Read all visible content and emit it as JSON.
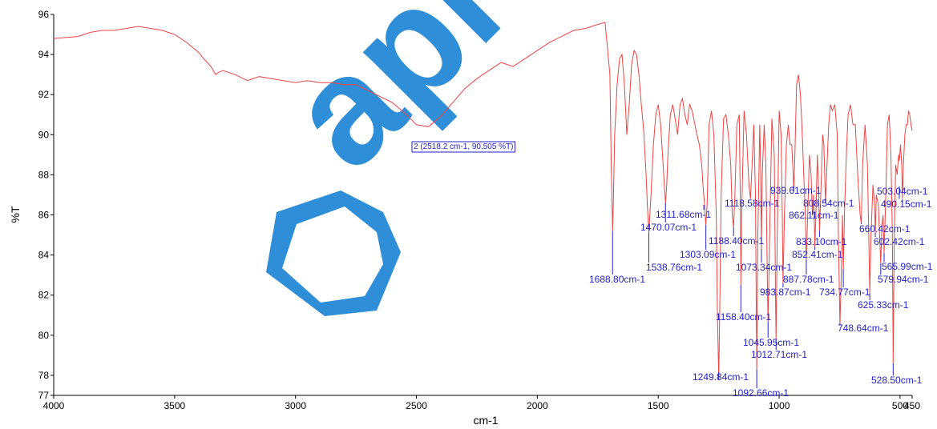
{
  "chart_data": {
    "type": "line",
    "xlabel": "cm-1",
    "ylabel": "%T",
    "xlim": [
      4000,
      450
    ],
    "ylim": [
      77,
      96
    ],
    "x_ticks": [
      4000,
      3500,
      3000,
      2500,
      2000,
      1500,
      1000,
      500,
      450
    ],
    "x_tick_labels": [
      "4000",
      "3500",
      "3000",
      "2500",
      "2000",
      "1500",
      "1000",
      "500",
      "450"
    ],
    "y_ticks": [
      77,
      78,
      80,
      82,
      84,
      86,
      88,
      90,
      92,
      94,
      96
    ],
    "y_tick_labels": [
      "77",
      "78",
      "80",
      "82",
      "84",
      "86",
      "88",
      "90",
      "92",
      "94",
      "96"
    ],
    "line_color": "#ee4444",
    "marker_color": "#2222cc",
    "series": [
      {
        "x": [
          4000,
          3900,
          3850,
          3800,
          3750,
          3700,
          3650,
          3600,
          3550,
          3500,
          3450,
          3400,
          3380,
          3350,
          3330,
          3320,
          3300,
          3250,
          3200,
          3150,
          3100,
          3050,
          3000,
          2950,
          2900,
          2850,
          2800,
          2750,
          2700,
          2650,
          2600,
          2550,
          2500,
          2450,
          2400,
          2350,
          2300,
          2250,
          2200,
          2150,
          2100,
          2050,
          2000,
          1950,
          1900,
          1850,
          1800,
          1750,
          1720,
          1700,
          1695,
          1690,
          1688.8,
          1685,
          1680,
          1670,
          1660,
          1650,
          1640,
          1630,
          1620,
          1610,
          1600,
          1590,
          1580,
          1570,
          1560,
          1550,
          1545,
          1538.76,
          1530,
          1520,
          1510,
          1500,
          1490,
          1480,
          1475,
          1470.07,
          1465,
          1460,
          1450,
          1440,
          1430,
          1420,
          1410,
          1400,
          1390,
          1380,
          1370,
          1360,
          1350,
          1340,
          1330,
          1320,
          1315,
          1311.68,
          1308,
          1303.09,
          1298,
          1290,
          1280,
          1270,
          1260,
          1255,
          1249.84,
          1245,
          1240,
          1230,
          1220,
          1210,
          1200,
          1194,
          1188.4,
          1183,
          1175,
          1165,
          1160,
          1158.4,
          1155,
          1145,
          1135,
          1125,
          1118.58,
          1112,
          1105,
          1098,
          1092.66,
          1088,
          1080,
          1076,
          1073.34,
          1070,
          1062,
          1055,
          1048,
          1045.95,
          1040,
          1030,
          1020,
          1015,
          1012.71,
          1008,
          1000,
          992,
          987,
          983.87,
          978,
          970,
          962,
          955,
          948,
          942,
          939.61,
          935,
          928,
          920,
          912,
          905,
          898,
          892,
          887.78,
          882,
          875,
          868,
          864,
          862.11,
          858,
          854,
          852.41,
          848,
          842,
          836,
          833.1,
          828,
          820,
          815,
          808.54,
          802,
          795,
          788,
          780,
          770,
          760,
          755,
          748.64,
          742,
          738,
          734.77,
          730,
          722,
          715,
          705,
          695,
          685,
          675,
          665,
          660.42,
          655,
          645,
          635,
          628,
          625.33,
          620,
          612,
          605,
          602.42,
          598,
          590,
          583,
          579.94,
          575,
          570,
          565.99,
          560,
          552,
          545,
          538,
          532,
          528.5,
          524,
          518,
          512,
          506,
          503.04,
          498,
          493,
          490.15,
          486,
          480,
          475,
          470,
          465,
          460,
          455,
          450
        ],
        "y": [
          94.8,
          94.9,
          95.1,
          95.2,
          95.2,
          95.3,
          95.4,
          95.3,
          95.2,
          95.0,
          94.6,
          94.1,
          93.8,
          93.4,
          93.0,
          93.1,
          93.2,
          93.0,
          92.7,
          92.9,
          92.8,
          92.7,
          92.6,
          92.7,
          92.6,
          92.6,
          92.5,
          92.5,
          92.2,
          91.9,
          91.6,
          91.1,
          90.5,
          90.4,
          90.9,
          91.6,
          92.3,
          92.8,
          93.2,
          93.6,
          93.4,
          93.8,
          94.2,
          94.6,
          94.9,
          95.2,
          95.3,
          95.5,
          95.6,
          93.0,
          89.0,
          86.0,
          85.2,
          87.0,
          90.0,
          92.5,
          93.8,
          94.0,
          92.5,
          90.0,
          91.5,
          93.5,
          94.2,
          94.0,
          93.0,
          91.5,
          90.2,
          88.0,
          86.5,
          85.1,
          87.0,
          89.5,
          91.0,
          91.5,
          90.5,
          88.5,
          87.5,
          86.6,
          87.5,
          89.0,
          91.0,
          91.5,
          90.8,
          90.0,
          91.5,
          91.8,
          91.0,
          90.5,
          91.5,
          91.2,
          90.6,
          90.0,
          89.5,
          88.5,
          87.5,
          87.0,
          86.5,
          85.5,
          86.5,
          90.5,
          91.2,
          90.0,
          86.0,
          81.0,
          77.8,
          82.0,
          87.0,
          90.8,
          91.0,
          90.0,
          88.5,
          86.0,
          85.4,
          87.0,
          90.5,
          91.0,
          86.0,
          82.5,
          86.0,
          91.2,
          90.0,
          87.5,
          86.8,
          88.5,
          90.5,
          87.0,
          78.3,
          85.0,
          90.5,
          88.0,
          84.3,
          88.0,
          90.5,
          88.5,
          82.0,
          80.7,
          84.5,
          90.8,
          89.0,
          82.0,
          79.8,
          85.0,
          91.2,
          90.0,
          86.0,
          82.6,
          86.0,
          89.5,
          90.5,
          89.5,
          89.5,
          88.0,
          87.2,
          89.0,
          92.5,
          93.0,
          92.0,
          90.2,
          88.0,
          86.0,
          83.8,
          86.0,
          89.0,
          88.0,
          86.5,
          86.0,
          87.0,
          85.5,
          84.4,
          86.0,
          89.0,
          87.0,
          85.2,
          87.0,
          90.0,
          89.5,
          86.6,
          88.5,
          90.5,
          91.5,
          91.2,
          91.5,
          90.0,
          85.0,
          80.5,
          83.5,
          86.0,
          83.3,
          86.0,
          89.0,
          91.0,
          91.5,
          90.5,
          90.5,
          88.0,
          86.0,
          85.6,
          88.5,
          90.5,
          88.5,
          84.0,
          82.1,
          85.0,
          87.5,
          86.5,
          85.1,
          87.0,
          86.5,
          84.5,
          83.6,
          85.5,
          86.0,
          84.1,
          86.5,
          90.5,
          91.0,
          89.0,
          85.0,
          78.6,
          85.0,
          88.5,
          88.0,
          89.0,
          88.7,
          89.5,
          88.5,
          86.8,
          88.5,
          90.0,
          90.5,
          90.5,
          91.2,
          91.0,
          90.5,
          90.2
        ]
      }
    ],
    "peaks": [
      {
        "x": 1688.8,
        "y": 85.2,
        "label": "1688.80cm-1"
      },
      {
        "x": 1538.76,
        "y": 85.1,
        "label": "1538.76cm-1"
      },
      {
        "x": 1470.07,
        "y": 86.6,
        "label": "1470.07cm-1"
      },
      {
        "x": 1311.68,
        "y": 86.5,
        "label": "1311.68cm-1"
      },
      {
        "x": 1303.09,
        "y": 85.5,
        "label": "1303.09cm-1"
      },
      {
        "x": 1249.84,
        "y": 77.8,
        "label": "1249.84cm-1"
      },
      {
        "x": 1188.4,
        "y": 85.4,
        "label": "1188.40cm-1"
      },
      {
        "x": 1158.4,
        "y": 82.5,
        "label": "1158.40cm-1"
      },
      {
        "x": 1118.58,
        "y": 86.8,
        "label": "1118.58cm-1"
      },
      {
        "x": 1092.66,
        "y": 78.3,
        "label": "1092.66cm-1"
      },
      {
        "x": 1073.34,
        "y": 84.3,
        "label": "1073.34cm-1"
      },
      {
        "x": 1045.95,
        "y": 80.7,
        "label": "1045.95cm-1"
      },
      {
        "x": 1012.71,
        "y": 79.8,
        "label": "1012.71cm-1"
      },
      {
        "x": 983.87,
        "y": 82.6,
        "label": "983.87cm-1"
      },
      {
        "x": 939.61,
        "y": 87.2,
        "label": "939.61cm-1"
      },
      {
        "x": 887.78,
        "y": 83.8,
        "label": "887.78cm-1"
      },
      {
        "x": 862.11,
        "y": 86.0,
        "label": "862.11cm-1"
      },
      {
        "x": 852.41,
        "y": 84.4,
        "label": "852.41cm-1"
      },
      {
        "x": 833.1,
        "y": 85.2,
        "label": "833.10cm-1"
      },
      {
        "x": 808.54,
        "y": 86.6,
        "label": "808.54cm-1"
      },
      {
        "x": 748.64,
        "y": 80.5,
        "label": "748.64cm-1"
      },
      {
        "x": 734.77,
        "y": 83.3,
        "label": "734.77cm-1"
      },
      {
        "x": 660.42,
        "y": 85.6,
        "label": "660.42cm-1"
      },
      {
        "x": 625.33,
        "y": 82.1,
        "label": "625.33cm-1"
      },
      {
        "x": 602.42,
        "y": 85.1,
        "label": "602.42cm-1"
      },
      {
        "x": 579.94,
        "y": 83.6,
        "label": "579.94cm-1"
      },
      {
        "x": 565.99,
        "y": 84.1,
        "label": "565.99cm-1"
      },
      {
        "x": 528.5,
        "y": 78.6,
        "label": "528.50cm-1"
      },
      {
        "x": 503.04,
        "y": 86.8,
        "label": "503.04cm-1"
      },
      {
        "x": 490.15,
        "y": 86.6,
        "label": "490.15cm-1"
      }
    ],
    "cursor": {
      "x": 2518.2,
      "y": 90.505,
      "label": "2 (2518.2 cm-1, 90.505 %T)"
    }
  },
  "watermark": {
    "text": "api",
    "color": "#2e8fd8"
  }
}
